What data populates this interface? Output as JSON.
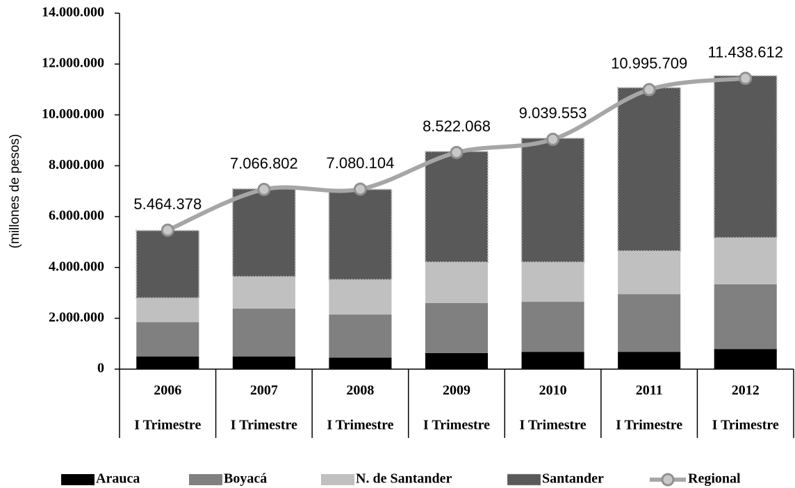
{
  "chart_data": {
    "type": "bar",
    "stacked": true,
    "y_label": "(millones de pesos)",
    "categories": [
      "2006",
      "2007",
      "2008",
      "2009",
      "2010",
      "2011",
      "2012"
    ],
    "sublabels": [
      "I Trimestre",
      "I Trimestre",
      "I Trimestre",
      "I Trimestre",
      "I Trimestre",
      "I Trimestre",
      "I Trimestre"
    ],
    "series": [
      {
        "name": "Arauca",
        "color": "#000000",
        "values": [
          500000,
          500000,
          450000,
          630000,
          680000,
          680000,
          790000
        ]
      },
      {
        "name": "Boyacá",
        "color": "#808080",
        "values": [
          1350000,
          1880000,
          1700000,
          1970000,
          1970000,
          2270000,
          2550000
        ]
      },
      {
        "name": "N. de Santander",
        "color": "#c0c0c0",
        "values": [
          950000,
          1260000,
          1370000,
          1610000,
          1560000,
          1700000,
          1830000
        ]
      },
      {
        "name": "Santander",
        "color": "#595959",
        "values": [
          2650000,
          3450000,
          3550000,
          4350000,
          4870000,
          6420000,
          6370000
        ]
      },
      {
        "name": "Regional",
        "type": "line",
        "color": "#a6a6a6",
        "values": [
          5464378,
          7066802,
          7080104,
          8522068,
          9039553,
          10995709,
          11438612
        ],
        "value_labels": [
          "5.464.378",
          "7.066.802",
          "7.080.104",
          "8.522.068",
          "9.039.553",
          "10.995.709",
          "11.438.612"
        ]
      }
    ],
    "ylim": [
      0,
      14000000
    ],
    "yticks": [
      0,
      {
        "value": 2000000,
        "label": "2.000.000"
      },
      {
        "value": 4000000,
        "label": "4.000.000"
      },
      {
        "value": 6000000,
        "label": "6.000.000"
      },
      {
        "value": 8000000,
        "label": "8.000.000"
      },
      {
        "value": 10000000,
        "label": "10.000.000"
      },
      {
        "value": 12000000,
        "label": "12.000.000"
      },
      {
        "value": 14000000,
        "label": "14.000.000"
      }
    ],
    "grid": false,
    "legend": "bottom"
  }
}
